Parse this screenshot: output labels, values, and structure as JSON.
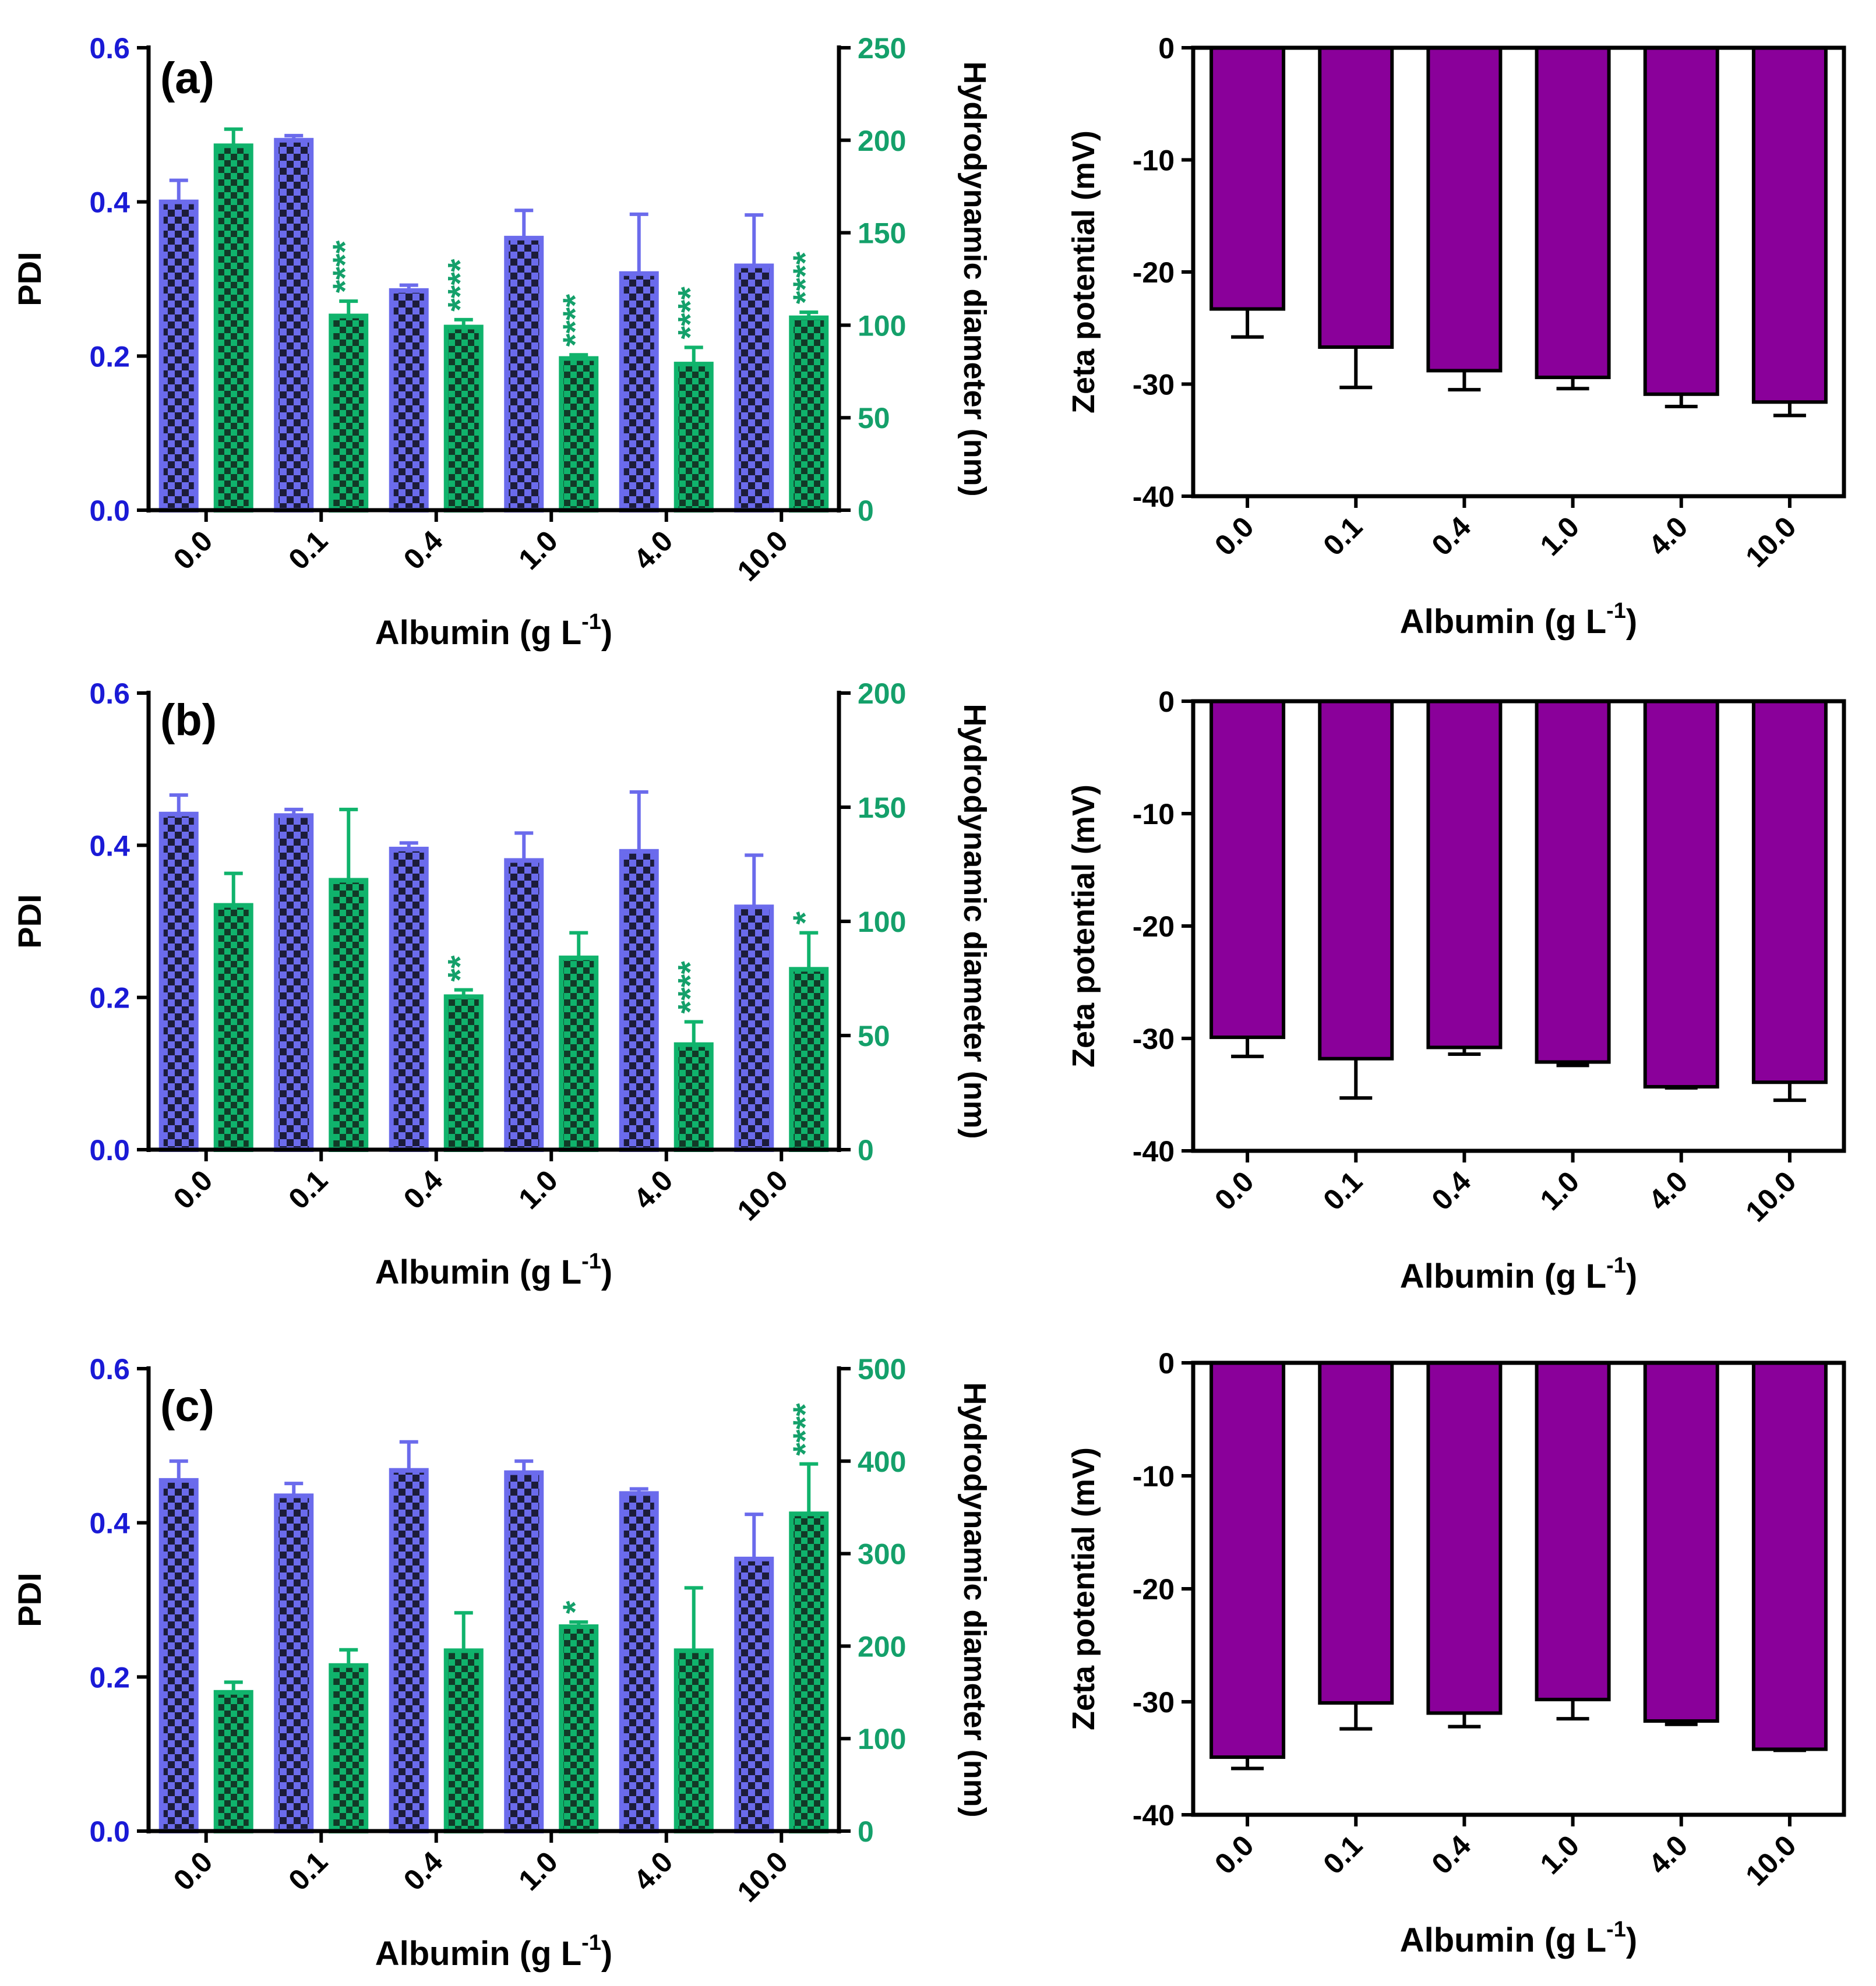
{
  "colors": {
    "pdi_bar": "#6b6bec",
    "pdi_pattern": "#1c1c3a",
    "pdi_axis": "#1a1ad6",
    "hd_bar": "#10b36c",
    "hd_pattern": "#123a28",
    "hd_axis": "#14a06a",
    "zeta_bar": "#8a009a",
    "axis": "#000000"
  },
  "chart_data": [
    {
      "id": "a",
      "type": "bar",
      "panel_label": "(a)",
      "xlabel": "Albumin (g L",
      "xlabel_sup": "-1",
      "xlabel_close": ")",
      "ylabel_left": "PDI",
      "ylabel_right": "Hydrodynamic diameter (nm)",
      "categories": [
        "0.0",
        "0.1",
        "0.4",
        "1.0",
        "4.0",
        "10.0"
      ],
      "ylim_left": [
        0,
        0.6
      ],
      "yticks_left": [
        "0.0",
        "0.2",
        "0.4",
        "0.6"
      ],
      "ylim_right": [
        0,
        250
      ],
      "yticks_right": [
        "0",
        "50",
        "100",
        "150",
        "200",
        "250"
      ],
      "series": [
        {
          "axis": "left",
          "values": [
            0.4,
            0.48,
            0.285,
            0.353,
            0.307,
            0.317
          ],
          "errors": [
            0.028,
            0.006,
            0.007,
            0.036,
            0.077,
            0.066
          ],
          "sig": [
            "",
            "",
            "",
            "",
            "",
            ""
          ]
        },
        {
          "axis": "right",
          "values": [
            197,
            105,
            99,
            82,
            79,
            104
          ],
          "errors": [
            9,
            8,
            4,
            2,
            9,
            3
          ],
          "sig": [
            "",
            "****",
            "****",
            "****",
            "****",
            "****"
          ]
        }
      ]
    },
    {
      "id": "b",
      "type": "bar",
      "panel_label": "(b)",
      "xlabel": "Albumin (g L",
      "xlabel_sup": "-1",
      "xlabel_close": ")",
      "ylabel_left": "PDI",
      "ylabel_right": "Hydrodynamic diameter (nm)",
      "categories": [
        "0.0",
        "0.1",
        "0.4",
        "1.0",
        "4.0",
        "10.0"
      ],
      "ylim_left": [
        0,
        0.6
      ],
      "yticks_left": [
        "0.0",
        "0.2",
        "0.4",
        "0.6"
      ],
      "ylim_right": [
        0,
        200
      ],
      "yticks_right": [
        "0",
        "50",
        "100",
        "150",
        "200"
      ],
      "series": [
        {
          "axis": "left",
          "values": [
            0.441,
            0.439,
            0.395,
            0.38,
            0.392,
            0.319
          ],
          "errors": [
            0.025,
            0.008,
            0.008,
            0.036,
            0.078,
            0.068
          ],
          "sig": [
            "",
            "",
            "",
            "",
            "",
            ""
          ]
        },
        {
          "axis": "right",
          "values": [
            107,
            118,
            67,
            84,
            46,
            79
          ],
          "errors": [
            14,
            31,
            3,
            11,
            10,
            16
          ],
          "sig": [
            "",
            "",
            "**",
            "",
            "****",
            "*"
          ]
        }
      ]
    },
    {
      "id": "c",
      "type": "bar",
      "panel_label": "(c)",
      "xlabel": "Albumin (g L",
      "xlabel_sup": "-1",
      "xlabel_close": ")",
      "ylabel_left": "PDI",
      "ylabel_right": "Hydrodynamic diameter (nm)",
      "categories": [
        "0.0",
        "0.1",
        "0.4",
        "1.0",
        "4.0",
        "10.0"
      ],
      "ylim_left": [
        0,
        0.6
      ],
      "yticks_left": [
        "0.0",
        "0.2",
        "0.4",
        "0.6"
      ],
      "ylim_right": [
        0,
        500
      ],
      "yticks_right": [
        "0",
        "100",
        "200",
        "300",
        "400",
        "500"
      ],
      "series": [
        {
          "axis": "left",
          "values": [
            0.455,
            0.435,
            0.468,
            0.465,
            0.438,
            0.353
          ],
          "errors": [
            0.025,
            0.016,
            0.037,
            0.015,
            0.006,
            0.058
          ],
          "sig": [
            "",
            "",
            "",
            "",
            "",
            ""
          ]
        },
        {
          "axis": "right",
          "values": [
            150,
            179,
            195,
            221,
            195,
            343
          ],
          "errors": [
            11,
            17,
            41,
            5,
            68,
            54
          ],
          "sig": [
            "",
            "",
            "",
            "*",
            "",
            "****"
          ]
        }
      ]
    },
    {
      "id": "a-zeta",
      "type": "bar",
      "xlabel": "Albumin (g L",
      "xlabel_sup": "-1",
      "xlabel_close": ")",
      "ylabel": "Zeta potential (mV)",
      "categories": [
        "0.0",
        "0.1",
        "0.4",
        "1.0",
        "4.0",
        "10.0"
      ],
      "ylim": [
        -40,
        0
      ],
      "yticks": [
        "0",
        "-10",
        "-20",
        "-30",
        "-40"
      ],
      "values": [
        -23.3,
        -26.7,
        -28.8,
        -29.4,
        -30.9,
        -31.6
      ],
      "errors": [
        2.5,
        3.6,
        1.7,
        1.0,
        1.1,
        1.2
      ]
    },
    {
      "id": "b-zeta",
      "type": "bar",
      "xlabel": "Albumin (g L",
      "xlabel_sup": "-1",
      "xlabel_close": ")",
      "ylabel": "Zeta potential (mV)",
      "categories": [
        "0.0",
        "0.1",
        "0.4",
        "1.0",
        "4.0",
        "10.0"
      ],
      "ylim": [
        -40,
        0
      ],
      "yticks": [
        "0",
        "-10",
        "-20",
        "-30",
        "-40"
      ],
      "values": [
        -29.9,
        -31.8,
        -30.8,
        -32.1,
        -34.3,
        -33.9
      ],
      "errors": [
        1.7,
        3.5,
        0.6,
        0.3,
        0.1,
        1.6
      ]
    },
    {
      "id": "c-zeta",
      "type": "bar",
      "xlabel": "Albumin (g L",
      "xlabel_sup": "-1",
      "xlabel_close": ")",
      "ylabel": "Zeta potential (mV)",
      "categories": [
        "0.0",
        "0.1",
        "0.4",
        "1.0",
        "4.0",
        "10.0"
      ],
      "ylim": [
        -40,
        0
      ],
      "yticks": [
        "0",
        "-10",
        "-20",
        "-30",
        "-40"
      ],
      "values": [
        -34.9,
        -30.1,
        -31.0,
        -29.8,
        -31.7,
        -34.2
      ],
      "errors": [
        1.0,
        2.3,
        1.2,
        1.7,
        0.3,
        0.1
      ]
    }
  ]
}
